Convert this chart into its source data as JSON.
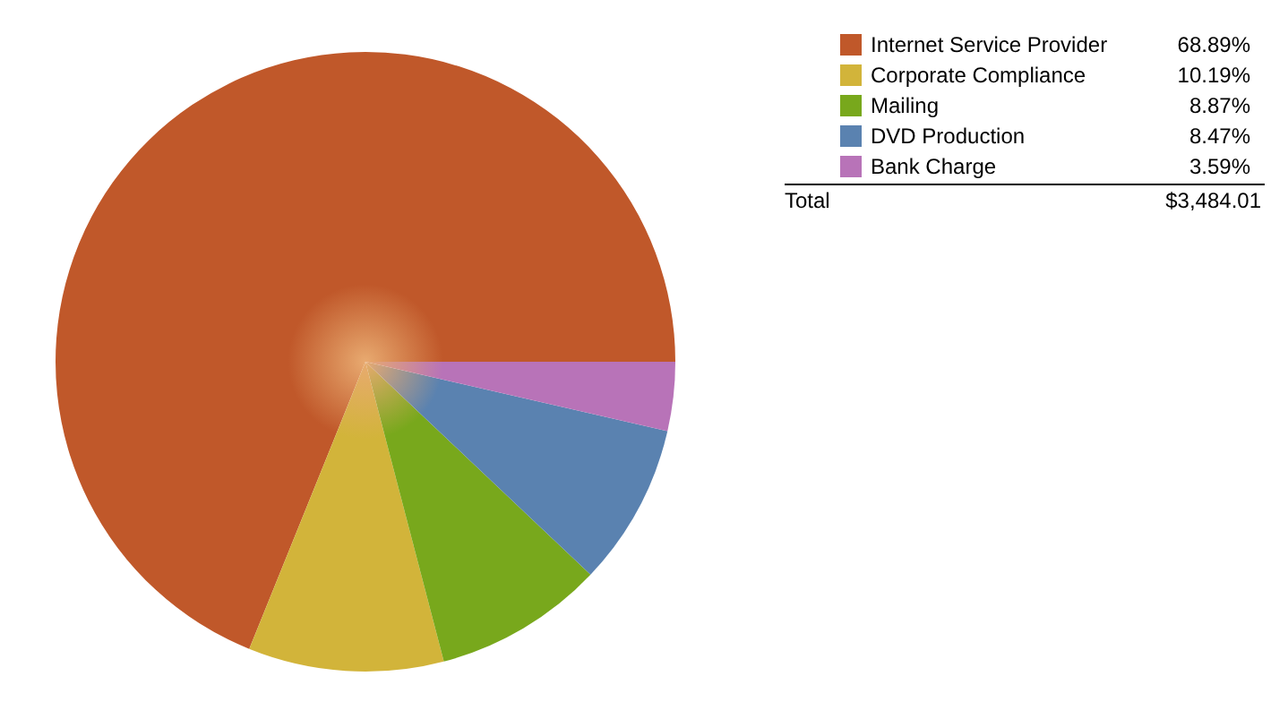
{
  "chart_data": {
    "type": "pie",
    "categories": [
      "Internet Service Provider",
      "Corporate Compliance",
      "Mailing",
      "DVD Production",
      "Bank Charge"
    ],
    "values": [
      68.89,
      10.19,
      8.87,
      8.47,
      3.59
    ],
    "colors": [
      "#c0582a",
      "#d2b43a",
      "#78a81c",
      "#5a82b0",
      "#b873b8"
    ],
    "value_labels": [
      "68.89%",
      "10.19%",
      "8.87%",
      "8.47%",
      "3.59%"
    ],
    "legend": "top right",
    "annotations": [
      "Total",
      "$3,484.01"
    ]
  }
}
